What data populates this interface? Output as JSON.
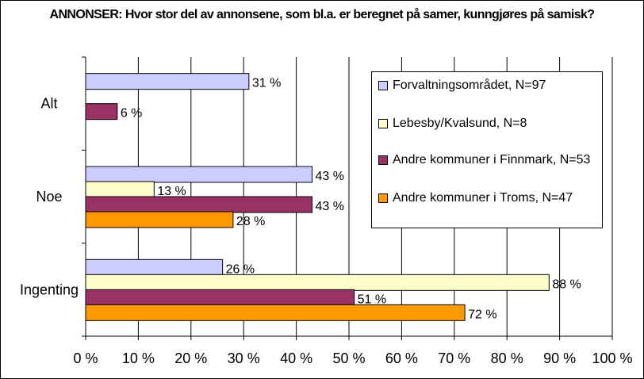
{
  "chart_data": {
    "type": "bar",
    "orientation": "horizontal",
    "title": "ANNONSER: Hvor stor del av annonsene, som bl.a. er beregnet på samer, kunngjøres på samisk?",
    "categories": [
      "Alt",
      "Noe",
      "Ingenting"
    ],
    "series": [
      {
        "name": "Forvaltningsområdet, N=97",
        "color": "#ccccff",
        "values": [
          31,
          43,
          26
        ],
        "labels": [
          "31 %",
          "43 %",
          "26 %"
        ]
      },
      {
        "name": "Lebesby/Kvalsund, N=8",
        "color": "#ffffcc",
        "values": [
          null,
          13,
          88
        ],
        "labels": [
          "",
          "13 %",
          "88 %"
        ]
      },
      {
        "name": "Andre kommuner i Finnmark, N=53",
        "color": "#993366",
        "values": [
          6,
          43,
          51
        ],
        "labels": [
          "6 %",
          "43 %",
          "51 %"
        ]
      },
      {
        "name": "Andre kommuner i Troms, N=47",
        "color": "#ff9900",
        "values": [
          null,
          28,
          72
        ],
        "labels": [
          "",
          "28 %",
          "72 %"
        ]
      }
    ],
    "xlim": [
      0,
      100
    ],
    "xticks": [
      0,
      10,
      20,
      30,
      40,
      50,
      60,
      70,
      80,
      90,
      100
    ],
    "xtick_labels": [
      "0 %",
      "10 %",
      "20 %",
      "30 %",
      "40 %",
      "50 %",
      "60 %",
      "70 %",
      "80 %",
      "90 %",
      "100 %"
    ],
    "grid": true,
    "legend_position": "right"
  }
}
